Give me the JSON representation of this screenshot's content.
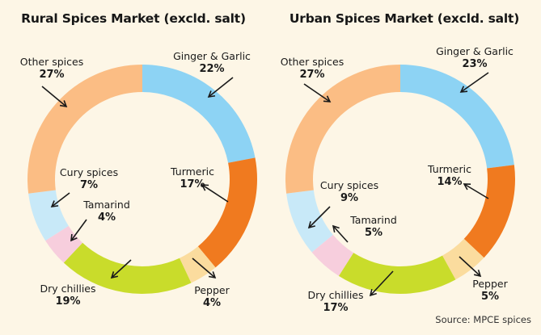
{
  "chart_data": [
    {
      "type": "pie",
      "title": "Rural Spices Market (excld. salt)",
      "donut": true,
      "slices": [
        {
          "label": "Ginger & Garlic",
          "value": 22,
          "value_label": "22%",
          "color": "#8dd3f4"
        },
        {
          "label": "Turmeric",
          "value": 17,
          "value_label": "17%",
          "color": "#f07a1f"
        },
        {
          "label": "Pepper",
          "value": 4,
          "value_label": "4%",
          "color": "#fbdc9e"
        },
        {
          "label": "Dry chillies",
          "value": 19,
          "value_label": "19%",
          "color": "#c9dc2b"
        },
        {
          "label": "Tamarind",
          "value": 4,
          "value_label": "4%",
          "color": "#f7cedd"
        },
        {
          "label": "Cury spices",
          "value": 7,
          "value_label": "7%",
          "color": "#c8e9f8"
        },
        {
          "label": "Other spices",
          "value": 27,
          "value_label": "27%",
          "color": "#fbbd84"
        }
      ]
    },
    {
      "type": "pie",
      "title": "Urban Spices Market (excld. salt)",
      "donut": true,
      "slices": [
        {
          "label": "Ginger & Garlic",
          "value": 23,
          "value_label": "23%",
          "color": "#8dd3f4"
        },
        {
          "label": "Turmeric",
          "value": 14,
          "value_label": "14%",
          "color": "#f07a1f"
        },
        {
          "label": "Pepper",
          "value": 5,
          "value_label": "5%",
          "color": "#fbdc9e"
        },
        {
          "label": "Dry chillies",
          "value": 17,
          "value_label": "17%",
          "color": "#c9dc2b"
        },
        {
          "label": "Tamarind",
          "value": 5,
          "value_label": "5%",
          "color": "#f7cedd"
        },
        {
          "label": "Cury spices",
          "value": 9,
          "value_label": "9%",
          "color": "#c8e9f8"
        },
        {
          "label": "Other spices",
          "value": 27,
          "value_label": "27%",
          "color": "#fbbd84"
        }
      ]
    }
  ],
  "source": "Source: MPCE spices"
}
